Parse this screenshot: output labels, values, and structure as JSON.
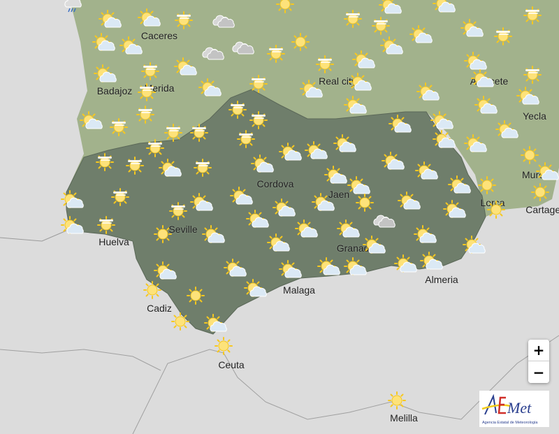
{
  "map": {
    "colors": {
      "background": "#dcdcdc",
      "region_other": "#a2b28c",
      "region_andalusia": "#6f7e6b",
      "sun": "#f7c81e",
      "cloud_light": "#dbe9f5",
      "cloud_gray": "#c3c3c3"
    },
    "cities": [
      {
        "name": "Caceres"
      },
      {
        "name": "Badajoz"
      },
      {
        "name": "Merida"
      },
      {
        "name": "Real city"
      },
      {
        "name": "Albacete"
      },
      {
        "name": "Yecla"
      },
      {
        "name": "Murcia"
      },
      {
        "name": "Cartagena"
      },
      {
        "name": "Lorca"
      },
      {
        "name": "Cordova"
      },
      {
        "name": "Jaen"
      },
      {
        "name": "Huelva"
      },
      {
        "name": "Seville"
      },
      {
        "name": "Granada"
      },
      {
        "name": "Almeria"
      },
      {
        "name": "Malaga"
      },
      {
        "name": "Cadiz"
      },
      {
        "name": "Ceuta"
      },
      {
        "name": "Melilla"
      }
    ],
    "icon_types": {
      "s": "sun-icon",
      "sc": "sun-cloud-icon",
      "sh": "sun-haze-icon",
      "c": "cloud-icon",
      "r": "rain-icon"
    }
  },
  "controls": {
    "zoom_in": "+",
    "zoom_out": "−"
  },
  "logo": {
    "text": "AEmet",
    "tagline": "Agencia Estatal de Meteorología"
  }
}
